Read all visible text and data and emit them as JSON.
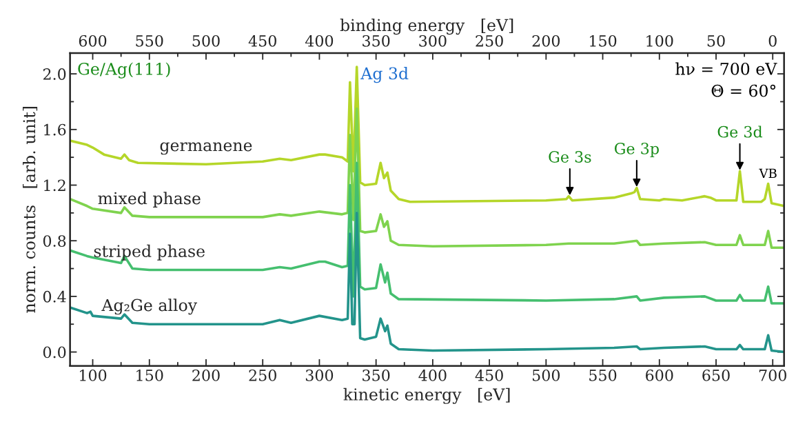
{
  "chart_data": {
    "type": "line",
    "xlabel": "kinetic energy   [eV]",
    "ylabel": "norm. counts   [arb. unit]",
    "x2label": "binding energy   [eV]",
    "xlim": [
      80,
      710
    ],
    "xticks": [
      100,
      150,
      200,
      250,
      300,
      350,
      400,
      450,
      500,
      550,
      600,
      650,
      700
    ],
    "x2lim": [
      620,
      -10
    ],
    "x2ticks": [
      600,
      550,
      500,
      450,
      400,
      350,
      300,
      250,
      200,
      150,
      100,
      50,
      0
    ],
    "ylim": [
      -0.1,
      2.15
    ],
    "yticks": [
      {
        "value": 0.0,
        "label": "0.0"
      },
      0.4,
      0.8,
      1.2,
      1.6,
      {
        "value": 2.0,
        "label": "2.0"
      }
    ],
    "grid": false,
    "legend": false,
    "series": [
      {
        "name": "germanene",
        "color": "#b5d629",
        "x": [
          80,
          95,
          100,
          110,
          120,
          125,
          128,
          132,
          140,
          200,
          250,
          265,
          275,
          300,
          305,
          320,
          325,
          327,
          330,
          333,
          336,
          340,
          350,
          354,
          357,
          360,
          363,
          370,
          380,
          500,
          518,
          520,
          523,
          560,
          575,
          578,
          580,
          583,
          600,
          604,
          620,
          640,
          645,
          650,
          668,
          671,
          674,
          690,
          693,
          696,
          699,
          710
        ],
        "values": [
          1.52,
          1.49,
          1.47,
          1.42,
          1.4,
          1.39,
          1.42,
          1.38,
          1.36,
          1.35,
          1.37,
          1.39,
          1.38,
          1.42,
          1.42,
          1.4,
          1.37,
          1.94,
          1.3,
          2.05,
          1.22,
          1.2,
          1.21,
          1.36,
          1.25,
          1.29,
          1.16,
          1.1,
          1.08,
          1.09,
          1.1,
          1.12,
          1.09,
          1.11,
          1.14,
          1.15,
          1.18,
          1.1,
          1.09,
          1.1,
          1.09,
          1.12,
          1.11,
          1.09,
          1.09,
          1.3,
          1.08,
          1.08,
          1.1,
          1.21,
          1.07,
          1.05
        ]
      },
      {
        "name": "mixed phase",
        "color": "#7fd34e",
        "x": [
          80,
          95,
          100,
          125,
          128,
          135,
          150,
          250,
          265,
          275,
          300,
          320,
          325,
          327,
          330,
          333,
          336,
          340,
          350,
          354,
          357,
          360,
          363,
          370,
          400,
          500,
          520,
          560,
          580,
          583,
          604,
          640,
          650,
          668,
          671,
          674,
          693,
          696,
          699,
          710
        ],
        "values": [
          1.1,
          1.05,
          1.03,
          1.0,
          1.04,
          0.98,
          0.97,
          0.97,
          0.99,
          0.98,
          1.01,
          0.99,
          1.0,
          1.56,
          0.95,
          1.75,
          0.87,
          0.86,
          0.87,
          0.99,
          0.9,
          0.94,
          0.8,
          0.77,
          0.76,
          0.77,
          0.78,
          0.78,
          0.8,
          0.77,
          0.78,
          0.79,
          0.77,
          0.77,
          0.84,
          0.77,
          0.77,
          0.87,
          0.75,
          0.75
        ]
      },
      {
        "name": "striped phase",
        "color": "#45bf6f",
        "x": [
          80,
          95,
          100,
          125,
          128,
          135,
          150,
          250,
          265,
          275,
          300,
          305,
          320,
          325,
          327,
          330,
          333,
          336,
          340,
          350,
          354,
          358,
          360,
          363,
          370,
          500,
          560,
          580,
          583,
          604,
          640,
          650,
          668,
          671,
          674,
          693,
          696,
          699,
          710
        ],
        "values": [
          0.73,
          0.69,
          0.68,
          0.64,
          0.69,
          0.6,
          0.59,
          0.59,
          0.61,
          0.6,
          0.65,
          0.65,
          0.61,
          0.62,
          1.2,
          0.4,
          1.36,
          0.47,
          0.45,
          0.46,
          0.63,
          0.5,
          0.57,
          0.42,
          0.38,
          0.37,
          0.38,
          0.4,
          0.37,
          0.39,
          0.4,
          0.37,
          0.37,
          0.41,
          0.37,
          0.37,
          0.47,
          0.35,
          0.35
        ]
      },
      {
        "name": "Ag₂Ge alloy",
        "color": "#23948b",
        "x": [
          80,
          95,
          98,
          100,
          125,
          128,
          135,
          150,
          250,
          265,
          275,
          300,
          320,
          325,
          327,
          329,
          331,
          333,
          336,
          340,
          350,
          354,
          358,
          360,
          363,
          370,
          400,
          500,
          560,
          580,
          583,
          604,
          640,
          650,
          668,
          671,
          674,
          693,
          696,
          699,
          710
        ],
        "values": [
          0.32,
          0.28,
          0.29,
          0.26,
          0.24,
          0.27,
          0.21,
          0.2,
          0.2,
          0.23,
          0.21,
          0.26,
          0.23,
          0.24,
          0.85,
          0.2,
          0.2,
          1.0,
          0.1,
          0.09,
          0.11,
          0.24,
          0.15,
          0.19,
          0.06,
          0.02,
          0.01,
          0.02,
          0.03,
          0.04,
          0.02,
          0.03,
          0.04,
          0.02,
          0.02,
          0.05,
          0.02,
          0.02,
          0.12,
          0.01,
          0.0
        ]
      }
    ],
    "annotations": [
      "Ge/Ag(111)",
      {
        "text": "Ag 3d",
        "x": 333,
        "y": 2.05
      },
      "hν = 700 eV",
      "Θ = 60°",
      {
        "text": "Ge 3s",
        "x": 521,
        "y": 1.12
      },
      {
        "text": "Ge 3p",
        "x": 580,
        "y": 1.18
      },
      {
        "text": "Ge 3d",
        "x": 671,
        "y": 1.3
      },
      {
        "text": "VB",
        "x": 696,
        "y": 1.22
      }
    ]
  }
}
